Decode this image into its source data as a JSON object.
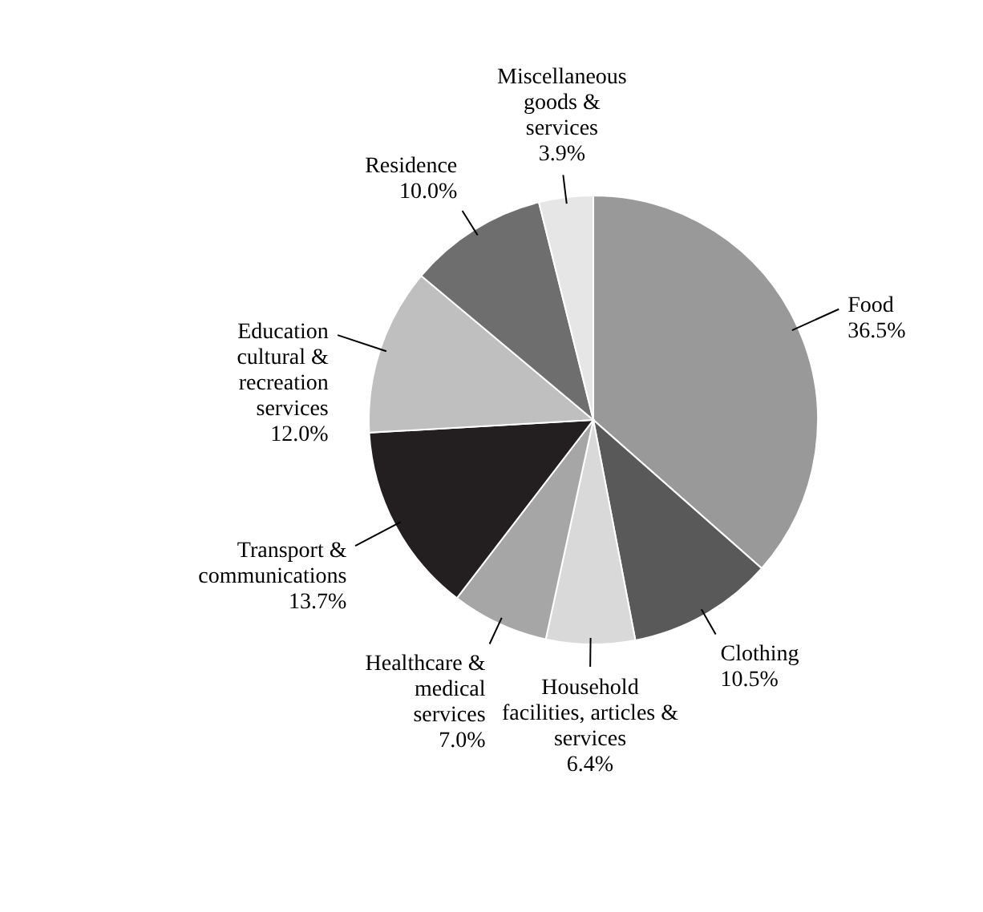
{
  "chart_data": {
    "type": "pie",
    "categories": [
      "Food",
      "Clothing",
      "Household\nfacilities, articles &\nservices",
      "Healthcare &\nmedical\nservices",
      "Transport &\ncommunications",
      "Education\ncultural &\nrecreation\nservices",
      "Residence",
      "Miscellaneous\ngoods &\nservices"
    ],
    "values": [
      36.5,
      10.5,
      6.4,
      7.0,
      13.7,
      12.0,
      10.0,
      3.9
    ],
    "value_labels": [
      "36.5%",
      "10.5%",
      "6.4%",
      "7.0%",
      "13.7%",
      "12.0%",
      "10.0%",
      "3.9%"
    ],
    "colors": [
      "#999999",
      "#595959",
      "#d9d9d9",
      "#a6a6a6",
      "#231f20",
      "#bfbfbf",
      "#6e6e6e",
      "#e6e6e6"
    ]
  }
}
